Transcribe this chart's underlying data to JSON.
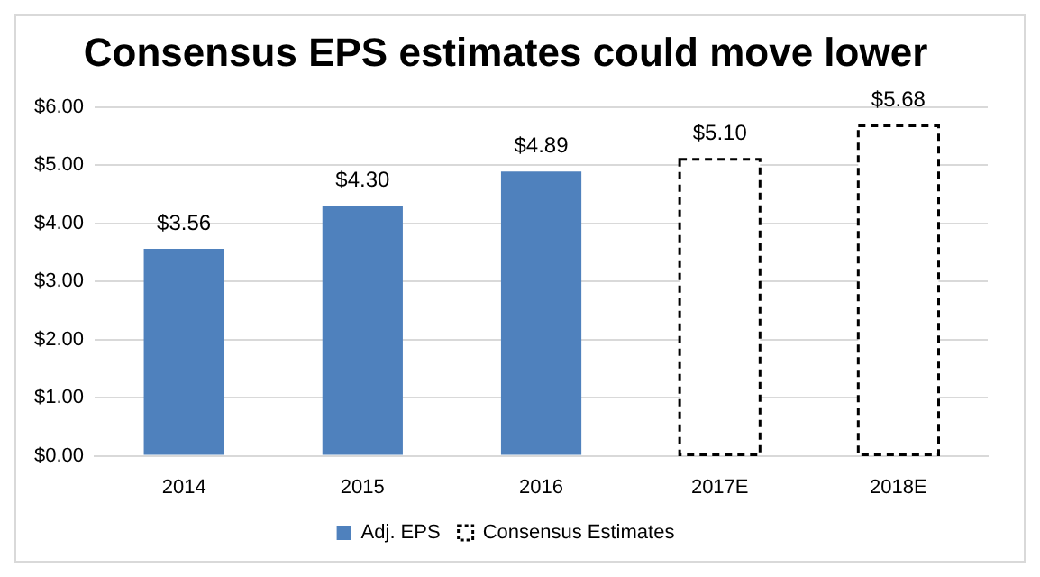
{
  "chart_data": {
    "type": "bar",
    "title": "Consensus EPS estimates could move lower",
    "categories": [
      "2014",
      "2015",
      "2016",
      "2017E",
      "2018E"
    ],
    "series": [
      {
        "name": "Adj. EPS",
        "color": "#4f81bd",
        "values": [
          3.56,
          4.3,
          4.89,
          null,
          null
        ],
        "value_labels": [
          "$3.56",
          "$4.30",
          "$4.89",
          null,
          null
        ]
      },
      {
        "name": "Consensus Estimates",
        "color": "#000000",
        "line_style": "dashed",
        "values": [
          null,
          null,
          null,
          5.1,
          5.68
        ],
        "value_labels": [
          null,
          null,
          null,
          "$5.10",
          "$5.68"
        ]
      }
    ],
    "ylim": [
      0,
      6
    ],
    "yticks": [
      {
        "value": 0,
        "label": "$0.00"
      },
      {
        "value": 1,
        "label": "$1.00"
      },
      {
        "value": 2,
        "label": "$2.00"
      },
      {
        "value": 3,
        "label": "$3.00"
      },
      {
        "value": 4,
        "label": "$4.00"
      },
      {
        "value": 5,
        "label": "$5.00"
      },
      {
        "value": 6,
        "label": "$6.00"
      }
    ],
    "grid": "y",
    "legend": "bottom"
  }
}
